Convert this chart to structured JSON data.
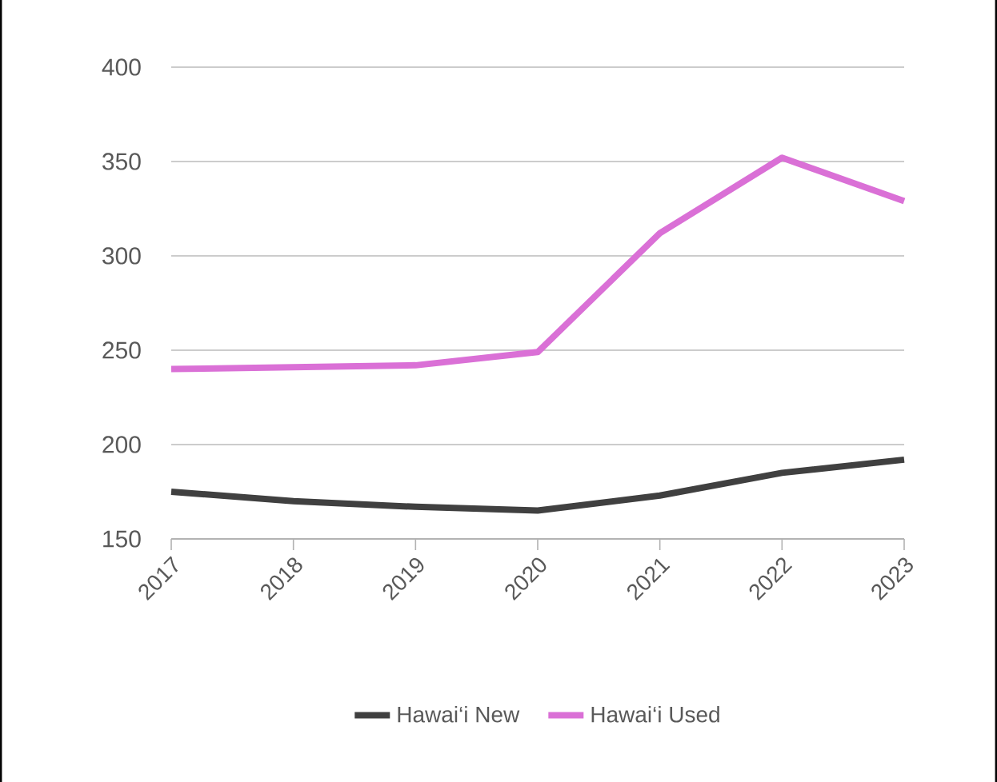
{
  "chart_data": {
    "type": "line",
    "categories": [
      "2017",
      "2018",
      "2019",
      "2020",
      "2021",
      "2022",
      "2023"
    ],
    "series": [
      {
        "name": "Hawai‘i New",
        "color": "#404040",
        "values": [
          175,
          170,
          167,
          165,
          173,
          185,
          192
        ]
      },
      {
        "name": "Hawai‘i Used",
        "color": "#da70d6",
        "values": [
          240,
          241,
          242,
          249,
          312,
          352,
          329
        ]
      }
    ],
    "ylim": [
      150,
      400
    ],
    "yticks": [
      150,
      200,
      250,
      300,
      350,
      400
    ],
    "grid": "y",
    "legend": "bottom",
    "marker": "none",
    "line_style": "solid"
  }
}
